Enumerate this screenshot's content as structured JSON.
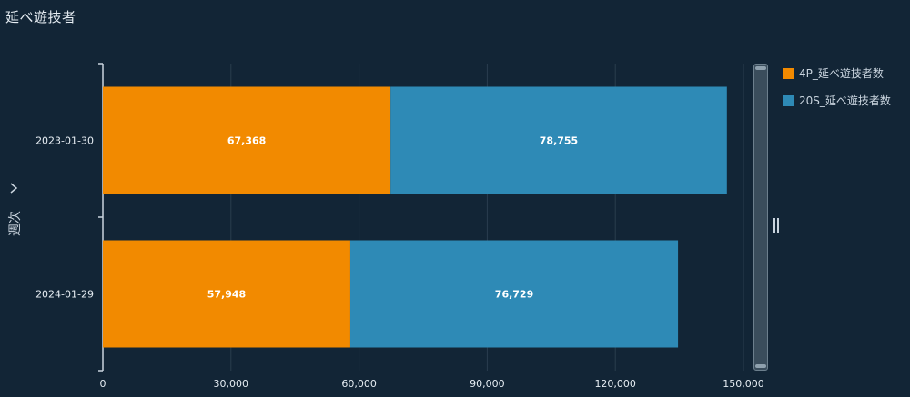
{
  "title": "延べ遊技者",
  "chart_data": {
    "type": "bar",
    "orientation": "horizontal",
    "stacked": true,
    "ylabel": "週次",
    "categories": [
      "2023-01-30",
      "2024-01-29"
    ],
    "series": [
      {
        "name": "4P_延べ遊技者数",
        "color": "#f28a00",
        "values": [
          67368,
          57948
        ]
      },
      {
        "name": "20S_延べ遊技者数",
        "color": "#2e8ab6",
        "values": [
          78755,
          76729
        ]
      }
    ],
    "x_ticks": [
      0,
      30000,
      60000,
      90000,
      120000,
      150000
    ],
    "x_tick_labels": [
      "0",
      "30,000",
      "60,000",
      "90,000",
      "120,000",
      "150,000"
    ],
    "xlim": [
      0,
      150000
    ],
    "grid": true,
    "legend_position": "right"
  }
}
